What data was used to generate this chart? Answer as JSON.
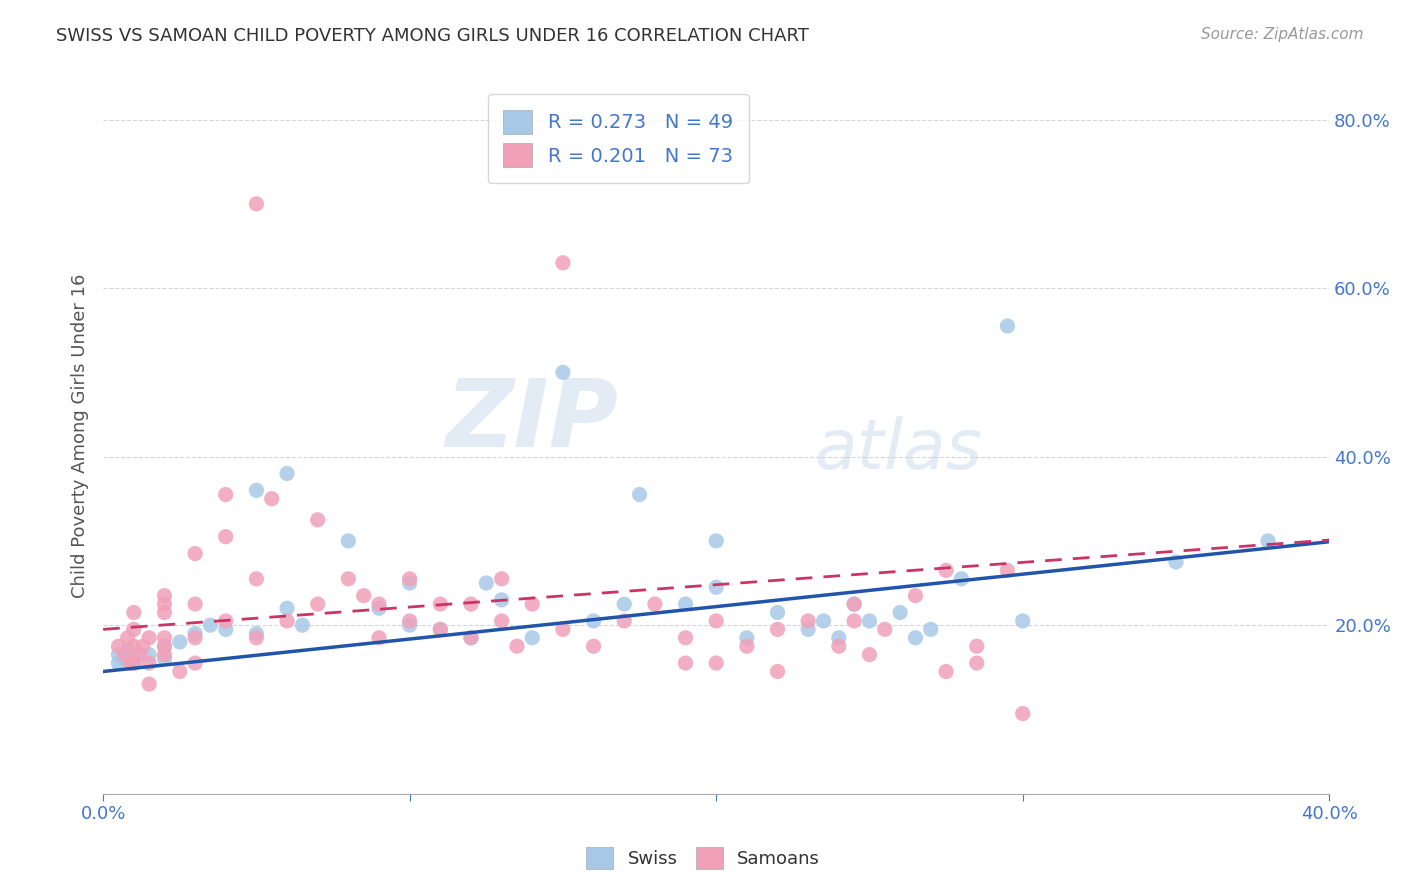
{
  "title": "SWISS VS SAMOAN CHILD POVERTY AMONG GIRLS UNDER 16 CORRELATION CHART",
  "source": "Source: ZipAtlas.com",
  "ylabel": "Child Poverty Among Girls Under 16",
  "xlim": [
    0.0,
    0.4
  ],
  "ylim": [
    0.0,
    0.85
  ],
  "xticks": [
    0.0,
    0.1,
    0.2,
    0.3,
    0.4
  ],
  "xticklabels": [
    "0.0%",
    "",
    "",
    "",
    "40.0%"
  ],
  "yticks": [
    0.2,
    0.4,
    0.6,
    0.8
  ],
  "yticklabels": [
    "20.0%",
    "40.0%",
    "60.0%",
    "80.0%"
  ],
  "swiss_color": "#a8c8e8",
  "samoan_color": "#f0a0b8",
  "swiss_line_color": "#2255aa",
  "samoan_line_color": "#cc3366",
  "tick_color": "#4477cc",
  "swiss_R": 0.273,
  "swiss_N": 49,
  "samoan_R": 0.201,
  "samoan_N": 73,
  "watermark_zip": "ZIP",
  "watermark_atlas": "atlas",
  "swiss_points": [
    [
      0.005,
      0.155
    ],
    [
      0.005,
      0.165
    ],
    [
      0.007,
      0.16
    ],
    [
      0.008,
      0.17
    ],
    [
      0.01,
      0.16
    ],
    [
      0.01,
      0.155
    ],
    [
      0.015,
      0.165
    ],
    [
      0.02,
      0.175
    ],
    [
      0.02,
      0.16
    ],
    [
      0.025,
      0.18
    ],
    [
      0.03,
      0.19
    ],
    [
      0.035,
      0.2
    ],
    [
      0.04,
      0.195
    ],
    [
      0.05,
      0.19
    ],
    [
      0.05,
      0.36
    ],
    [
      0.06,
      0.38
    ],
    [
      0.06,
      0.22
    ],
    [
      0.065,
      0.2
    ],
    [
      0.08,
      0.3
    ],
    [
      0.09,
      0.22
    ],
    [
      0.1,
      0.25
    ],
    [
      0.1,
      0.2
    ],
    [
      0.11,
      0.195
    ],
    [
      0.12,
      0.185
    ],
    [
      0.125,
      0.25
    ],
    [
      0.13,
      0.23
    ],
    [
      0.14,
      0.185
    ],
    [
      0.15,
      0.5
    ],
    [
      0.16,
      0.205
    ],
    [
      0.17,
      0.225
    ],
    [
      0.175,
      0.355
    ],
    [
      0.19,
      0.225
    ],
    [
      0.2,
      0.3
    ],
    [
      0.2,
      0.245
    ],
    [
      0.21,
      0.185
    ],
    [
      0.22,
      0.215
    ],
    [
      0.23,
      0.195
    ],
    [
      0.235,
      0.205
    ],
    [
      0.24,
      0.185
    ],
    [
      0.245,
      0.225
    ],
    [
      0.25,
      0.205
    ],
    [
      0.26,
      0.215
    ],
    [
      0.265,
      0.185
    ],
    [
      0.27,
      0.195
    ],
    [
      0.28,
      0.255
    ],
    [
      0.295,
      0.555
    ],
    [
      0.3,
      0.205
    ],
    [
      0.35,
      0.275
    ],
    [
      0.38,
      0.3
    ]
  ],
  "samoan_points": [
    [
      0.005,
      0.175
    ],
    [
      0.007,
      0.165
    ],
    [
      0.008,
      0.185
    ],
    [
      0.009,
      0.155
    ],
    [
      0.01,
      0.175
    ],
    [
      0.01,
      0.195
    ],
    [
      0.01,
      0.215
    ],
    [
      0.01,
      0.155
    ],
    [
      0.012,
      0.165
    ],
    [
      0.013,
      0.175
    ],
    [
      0.015,
      0.185
    ],
    [
      0.015,
      0.155
    ],
    [
      0.015,
      0.13
    ],
    [
      0.02,
      0.165
    ],
    [
      0.02,
      0.185
    ],
    [
      0.02,
      0.215
    ],
    [
      0.02,
      0.235
    ],
    [
      0.02,
      0.225
    ],
    [
      0.02,
      0.175
    ],
    [
      0.025,
      0.145
    ],
    [
      0.03,
      0.225
    ],
    [
      0.03,
      0.185
    ],
    [
      0.03,
      0.155
    ],
    [
      0.03,
      0.285
    ],
    [
      0.04,
      0.305
    ],
    [
      0.04,
      0.355
    ],
    [
      0.04,
      0.205
    ],
    [
      0.05,
      0.7
    ],
    [
      0.05,
      0.255
    ],
    [
      0.05,
      0.185
    ],
    [
      0.055,
      0.35
    ],
    [
      0.06,
      0.205
    ],
    [
      0.07,
      0.325
    ],
    [
      0.07,
      0.225
    ],
    [
      0.08,
      0.255
    ],
    [
      0.085,
      0.235
    ],
    [
      0.09,
      0.225
    ],
    [
      0.09,
      0.185
    ],
    [
      0.1,
      0.205
    ],
    [
      0.1,
      0.255
    ],
    [
      0.11,
      0.225
    ],
    [
      0.11,
      0.195
    ],
    [
      0.12,
      0.185
    ],
    [
      0.12,
      0.225
    ],
    [
      0.13,
      0.205
    ],
    [
      0.13,
      0.255
    ],
    [
      0.135,
      0.175
    ],
    [
      0.14,
      0.225
    ],
    [
      0.15,
      0.63
    ],
    [
      0.15,
      0.195
    ],
    [
      0.16,
      0.175
    ],
    [
      0.17,
      0.205
    ],
    [
      0.18,
      0.225
    ],
    [
      0.19,
      0.155
    ],
    [
      0.19,
      0.185
    ],
    [
      0.2,
      0.205
    ],
    [
      0.2,
      0.155
    ],
    [
      0.21,
      0.175
    ],
    [
      0.22,
      0.195
    ],
    [
      0.22,
      0.145
    ],
    [
      0.23,
      0.205
    ],
    [
      0.24,
      0.175
    ],
    [
      0.245,
      0.225
    ],
    [
      0.245,
      0.205
    ],
    [
      0.25,
      0.165
    ],
    [
      0.255,
      0.195
    ],
    [
      0.265,
      0.235
    ],
    [
      0.275,
      0.265
    ],
    [
      0.275,
      0.145
    ],
    [
      0.285,
      0.155
    ],
    [
      0.285,
      0.175
    ],
    [
      0.295,
      0.265
    ],
    [
      0.3,
      0.095
    ]
  ]
}
